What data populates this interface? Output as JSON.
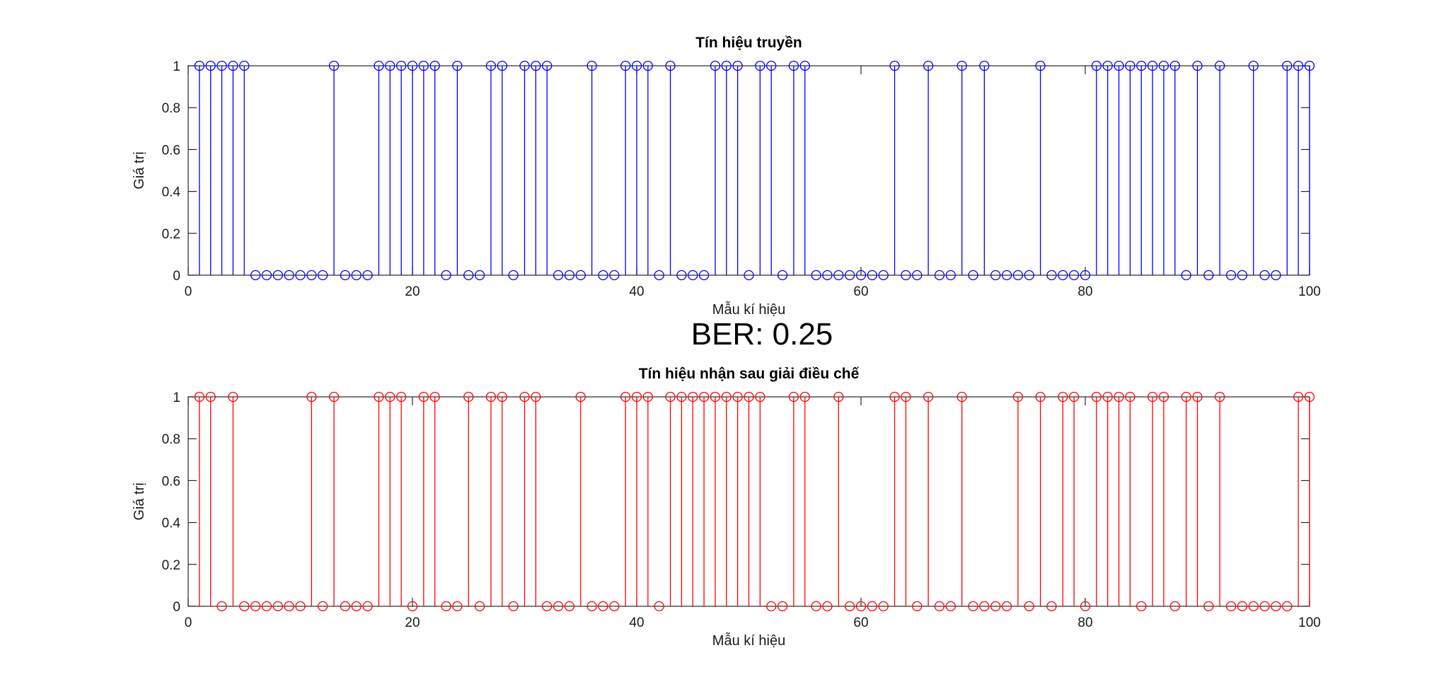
{
  "ber_text": "BER: 0.25",
  "chart_data": [
    {
      "type": "stem",
      "title": "Tín hiệu truyền",
      "xlabel": "Mẫu kí hiệu",
      "ylabel": "Giá trị",
      "xlim": [
        0,
        100
      ],
      "ylim": [
        0,
        1
      ],
      "xticks": [
        "0",
        "20",
        "40",
        "60",
        "80",
        "100"
      ],
      "yticks": [
        "0",
        "0.2",
        "0.4",
        "0.6",
        "0.8",
        "1"
      ],
      "color": "#0000ff",
      "x": [
        1,
        2,
        3,
        4,
        5,
        6,
        7,
        8,
        9,
        10,
        11,
        12,
        13,
        14,
        15,
        16,
        17,
        18,
        19,
        20,
        21,
        22,
        23,
        24,
        25,
        26,
        27,
        28,
        29,
        30,
        31,
        32,
        33,
        34,
        35,
        36,
        37,
        38,
        39,
        40,
        41,
        42,
        43,
        44,
        45,
        46,
        47,
        48,
        49,
        50,
        51,
        52,
        53,
        54,
        55,
        56,
        57,
        58,
        59,
        60,
        61,
        62,
        63,
        64,
        65,
        66,
        67,
        68,
        69,
        70,
        71,
        72,
        73,
        74,
        75,
        76,
        77,
        78,
        79,
        80,
        81,
        82,
        83,
        84,
        85,
        86,
        87,
        88,
        89,
        90,
        91,
        92,
        93,
        94,
        95,
        96,
        97,
        98,
        99,
        100
      ],
      "values": [
        1,
        1,
        1,
        1,
        1,
        0,
        0,
        0,
        0,
        0,
        0,
        0,
        1,
        0,
        0,
        0,
        1,
        1,
        1,
        1,
        1,
        1,
        0,
        1,
        0,
        0,
        1,
        1,
        0,
        1,
        1,
        1,
        0,
        0,
        0,
        1,
        0,
        0,
        1,
        1,
        1,
        0,
        1,
        0,
        0,
        0,
        1,
        1,
        1,
        0,
        1,
        1,
        0,
        1,
        1,
        0,
        0,
        0,
        0,
        0,
        0,
        0,
        1,
        0,
        0,
        1,
        0,
        0,
        1,
        0,
        1,
        0,
        0,
        0,
        0,
        1,
        0,
        0,
        0,
        0,
        1,
        1,
        1,
        1,
        1,
        1,
        1,
        1,
        0,
        1,
        0,
        1,
        0,
        0,
        1,
        0,
        0,
        1,
        1,
        1
      ]
    },
    {
      "type": "stem",
      "title": "Tín hiệu nhận sau giải điều chế",
      "xlabel": "Mẫu kí hiệu",
      "ylabel": "Giá trị",
      "xlim": [
        0,
        100
      ],
      "ylim": [
        0,
        1
      ],
      "xticks": [
        "0",
        "20",
        "40",
        "60",
        "80",
        "100"
      ],
      "yticks": [
        "0",
        "0.2",
        "0.4",
        "0.6",
        "0.8",
        "1"
      ],
      "color": "#ff0000",
      "x": [
        1,
        2,
        3,
        4,
        5,
        6,
        7,
        8,
        9,
        10,
        11,
        12,
        13,
        14,
        15,
        16,
        17,
        18,
        19,
        20,
        21,
        22,
        23,
        24,
        25,
        26,
        27,
        28,
        29,
        30,
        31,
        32,
        33,
        34,
        35,
        36,
        37,
        38,
        39,
        40,
        41,
        42,
        43,
        44,
        45,
        46,
        47,
        48,
        49,
        50,
        51,
        52,
        53,
        54,
        55,
        56,
        57,
        58,
        59,
        60,
        61,
        62,
        63,
        64,
        65,
        66,
        67,
        68,
        69,
        70,
        71,
        72,
        73,
        74,
        75,
        76,
        77,
        78,
        79,
        80,
        81,
        82,
        83,
        84,
        85,
        86,
        87,
        88,
        89,
        90,
        91,
        92,
        93,
        94,
        95,
        96,
        97,
        98,
        99,
        100
      ],
      "values": [
        1,
        1,
        0,
        1,
        0,
        0,
        0,
        0,
        0,
        0,
        1,
        0,
        1,
        0,
        0,
        0,
        1,
        1,
        1,
        0,
        1,
        1,
        0,
        0,
        1,
        0,
        1,
        1,
        0,
        1,
        1,
        0,
        0,
        0,
        1,
        0,
        0,
        0,
        1,
        1,
        1,
        0,
        1,
        1,
        1,
        1,
        1,
        1,
        1,
        1,
        1,
        0,
        0,
        1,
        1,
        0,
        0,
        1,
        0,
        0,
        0,
        0,
        1,
        1,
        0,
        1,
        0,
        0,
        1,
        0,
        0,
        0,
        0,
        1,
        0,
        1,
        0,
        1,
        1,
        0,
        1,
        1,
        1,
        1,
        0,
        1,
        1,
        0,
        1,
        1,
        0,
        1,
        0,
        0,
        0,
        0,
        0,
        0,
        1,
        1
      ]
    }
  ]
}
